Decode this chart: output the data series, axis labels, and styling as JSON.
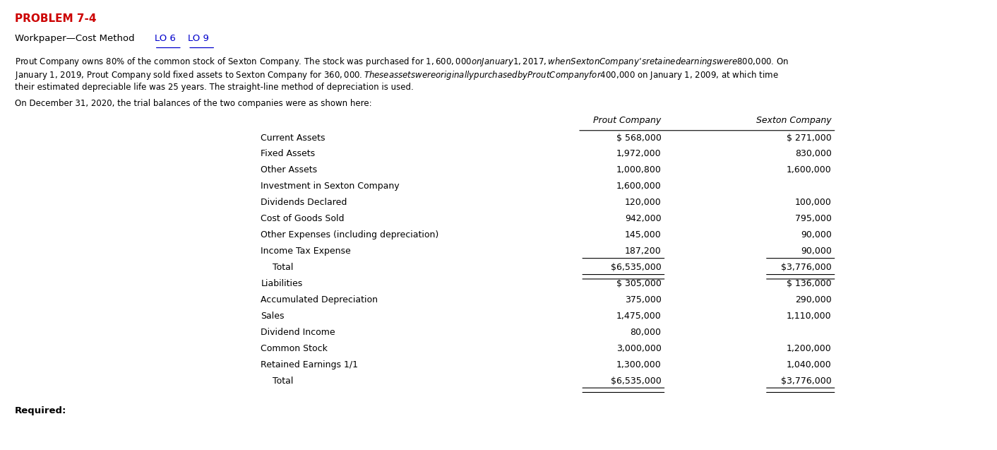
{
  "title": "PROBLEM 7-4",
  "paragraph1": "Prout Company owns 80% of the common stock of Sexton Company. The stock was purchased for $1,600,000 on January 1, 2017, when Sexton Company’s retained earnings were $800,000. On",
  "paragraph2": "January 1, 2019, Prout Company sold fixed assets to Sexton Company for $360,000. These assets were originally purchased by Prout Company for $400,000 on January 1, 2009, at which time",
  "paragraph3": "their estimated depreciable life was 25 years. The straight-line method of depreciation is used.",
  "intro": "On December 31, 2020, the trial balances of the two companies were as shown here:",
  "subtitle_prefix": "Workpaper—Cost Method ",
  "lo6": "LO 6",
  "lo9": "LO 9",
  "col_header1": "Prout Company",
  "col_header2": "Sexton Company",
  "rows": [
    [
      "Current Assets",
      "$ 568,000",
      "$ 271,000"
    ],
    [
      "Fixed Assets",
      "1,972,000",
      "830,000"
    ],
    [
      "Other Assets",
      "1,000,800",
      "1,600,000"
    ],
    [
      "Investment in Sexton Company",
      "1,600,000",
      ""
    ],
    [
      "Dividends Declared",
      "120,000",
      "100,000"
    ],
    [
      "Cost of Goods Sold",
      "942,000",
      "795,000"
    ],
    [
      "Other Expenses (including depreciation)",
      "145,000",
      "90,000"
    ],
    [
      "Income Tax Expense",
      "187,200",
      "90,000"
    ],
    [
      "  Total",
      "$6,535,000",
      "$3,776,000"
    ],
    [
      "Liabilities",
      "$ 305,000",
      "$ 136,000"
    ],
    [
      "Accumulated Depreciation",
      "375,000",
      "290,000"
    ],
    [
      "Sales",
      "1,475,000",
      "1,110,000"
    ],
    [
      "Dividend Income",
      "80,000",
      ""
    ],
    [
      "Common Stock",
      "3,000,000",
      "1,200,000"
    ],
    [
      "Retained Earnings 1/1",
      "1,300,000",
      "1,040,000"
    ],
    [
      "  Total",
      "$6,535,000",
      "$3,776,000"
    ]
  ],
  "single_underline_rows": [
    7
  ],
  "double_underline_rows": [
    8,
    15
  ],
  "required_label": "Required:",
  "bg_color": "#ffffff",
  "title_color": "#cc0000",
  "link_color": "#0000cc",
  "text_color": "#000000"
}
